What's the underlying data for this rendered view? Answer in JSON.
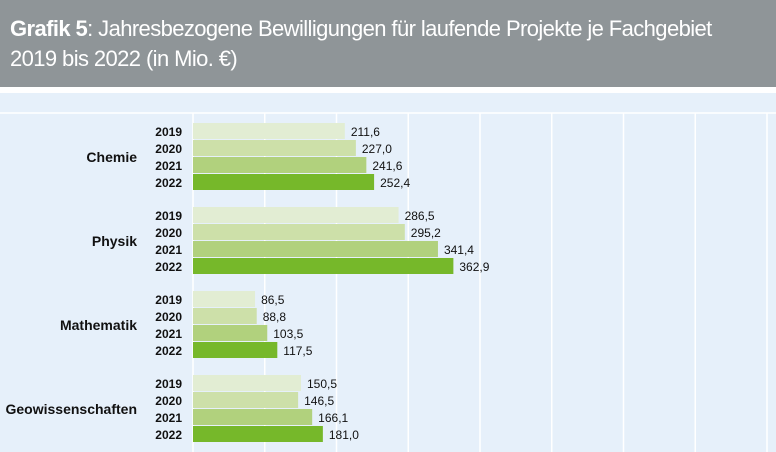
{
  "header": {
    "title_bold": "Grafik 5",
    "title_rest": ": Jahresbezogene Bewilligungen für laufende Projekte je Fachgebiet",
    "title_line2": "2019 bis 2022 (in Mio. €)"
  },
  "chart_data": {
    "type": "bar",
    "orientation": "horizontal",
    "title": "Grafik 5: Jahresbezogene Bewilligungen für laufende Projekte je Fachgebiet 2019 bis 2022 (in Mio. €)",
    "categories": [
      "Chemie",
      "Physik",
      "Mathematik",
      "Geowissenschaften"
    ],
    "series": [
      {
        "name": "2019",
        "values": [
          211.6,
          286.5,
          86.5,
          150.5
        ],
        "labels": [
          "211,6",
          "286,5",
          "86,5",
          "150,5"
        ],
        "color": "#e2edd3"
      },
      {
        "name": "2020",
        "values": [
          227.0,
          295.2,
          88.8,
          146.5
        ],
        "labels": [
          "227,0",
          "295,2",
          "88,8",
          "146,5"
        ],
        "color": "#cde0a9"
      },
      {
        "name": "2021",
        "values": [
          241.6,
          341.4,
          103.5,
          166.1
        ],
        "labels": [
          "241,6",
          "341,4",
          "103,5",
          "166,1"
        ],
        "color": "#b1d17d"
      },
      {
        "name": "2022",
        "values": [
          252.4,
          362.9,
          117.5,
          181.0
        ],
        "labels": [
          "252,4",
          "362,9",
          "117,5",
          "181,0"
        ],
        "color": "#76b82a"
      }
    ],
    "xlim": [
      0,
      800
    ],
    "grid": true,
    "grid_step": 100,
    "background": "#e6f0fa"
  }
}
